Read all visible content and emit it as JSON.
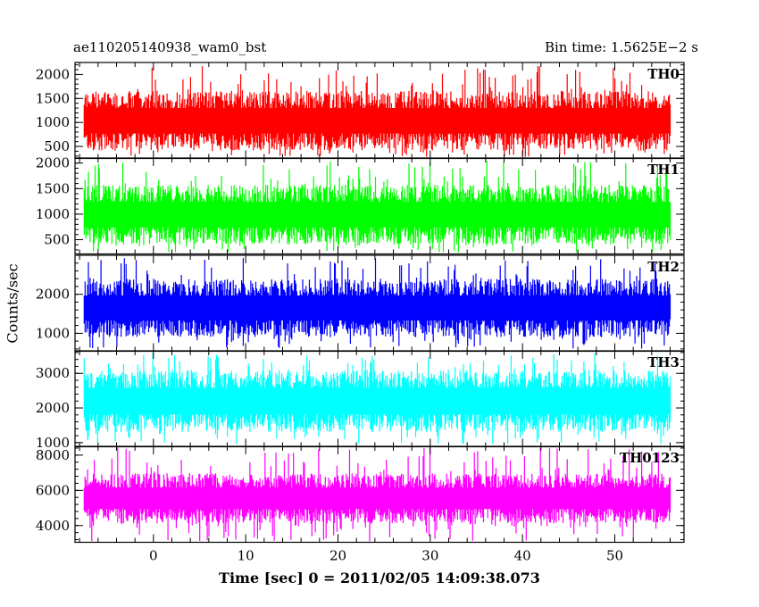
{
  "header": {
    "left_title": "ae110205140938_wam0_bst",
    "right_title": "Bin time: 1.5625E−2 s"
  },
  "chart_data": {
    "type": "line",
    "xlabel": "Time [sec] 0 = 2011/02/05 14:09:38.073",
    "ylabel": "Counts/sec",
    "xlim": [
      -8.5,
      57.5
    ],
    "x_range_data": [
      -7.5,
      56
    ],
    "x_ticks_major": [
      0,
      10,
      20,
      30,
      40,
      50
    ],
    "grid": false,
    "panels": [
      {
        "name": "TH0",
        "color": "#ff0000",
        "ylim": [
          250,
          2250
        ],
        "yticks": [
          500,
          1000,
          1500,
          2000
        ],
        "typical_low": 620,
        "typical_high": 1450,
        "min": 280,
        "max": 2200
      },
      {
        "name": "TH1",
        "color": "#00ff00",
        "ylim": [
          220,
          2100
        ],
        "yticks": [
          500,
          1000,
          1500,
          2000
        ],
        "typical_low": 600,
        "typical_high": 1380,
        "min": 250,
        "max": 2050
      },
      {
        "name": "TH2",
        "color": "#0000ff",
        "ylim": [
          540,
          3000
        ],
        "yticks": [
          1000,
          2000
        ],
        "typical_low": 1150,
        "typical_high": 2150,
        "min": 600,
        "max": 2950
      },
      {
        "name": "TH3",
        "color": "#00ffff",
        "ylim": [
          880,
          3650
        ],
        "yticks": [
          1000,
          2000,
          3000
        ],
        "typical_low": 1600,
        "typical_high": 2800,
        "min": 950,
        "max": 3600
      },
      {
        "name": "TH0123",
        "color": "#ff00ff",
        "ylim": [
          3050,
          8500
        ],
        "yticks": [
          4000,
          6000,
          8000
        ],
        "typical_low": 4600,
        "typical_high": 6500,
        "min": 3100,
        "max": 8450
      }
    ]
  }
}
